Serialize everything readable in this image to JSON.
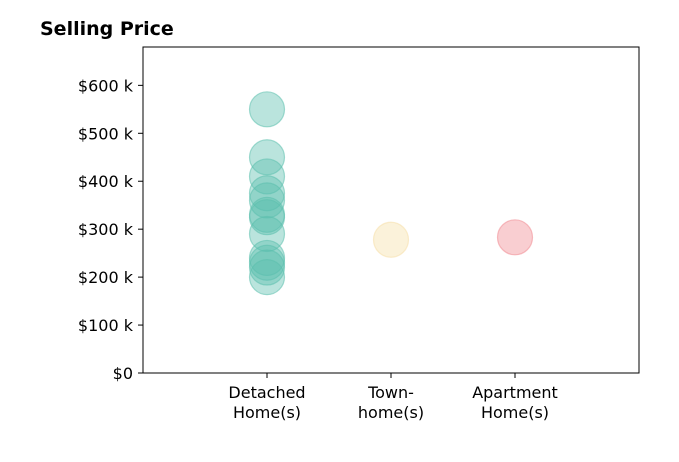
{
  "chart_data": {
    "type": "scatter",
    "title": "Selling Price",
    "xlabel": "",
    "ylabel": "",
    "categories": [
      {
        "label": [
          "Detached",
          "Home(s)"
        ],
        "color": "#5bbfad"
      },
      {
        "label": [
          "Town-",
          "home(s)"
        ],
        "color": "#f5dfa8"
      },
      {
        "label": [
          "Apartment",
          "Home(s)"
        ],
        "color": "#f08a91"
      }
    ],
    "series": [
      {
        "category": 0,
        "values": [
          550000,
          450000,
          410000,
          375000,
          360000,
          330000,
          325000,
          290000,
          240000,
          230000,
          220000,
          200000
        ]
      },
      {
        "category": 1,
        "values": [
          278000
        ]
      },
      {
        "category": 2,
        "values": [
          283000
        ]
      }
    ],
    "ylim": [
      0,
      680000
    ],
    "yticks": [
      0,
      100000,
      200000,
      300000,
      400000,
      500000,
      600000
    ],
    "ytick_labels": [
      "$0",
      "$100 k",
      "$200 k",
      "$300 k",
      "$400 k",
      "$500 k",
      "$600 k"
    ],
    "grid": false,
    "legend": "none"
  }
}
